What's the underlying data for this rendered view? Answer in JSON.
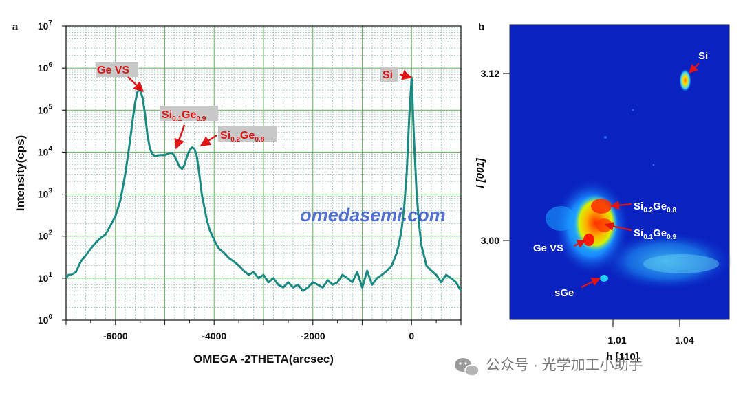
{
  "chart_data": [
    {
      "panel": "a",
      "type": "line",
      "xlabel": "OMEGA -2THETA(arcsec)",
      "ylabel": "Intensity(cps)",
      "xlim": [
        -7000,
        1000
      ],
      "ylim": [
        1,
        10000000
      ],
      "yscale": "log",
      "grid": true,
      "x_ticks": [
        -6000,
        -4000,
        -2000,
        0
      ],
      "y_tick_base": "10",
      "y_tick_exponents": [
        "0",
        "1",
        "2",
        "3",
        "4",
        "5",
        "6",
        "7"
      ],
      "line_color": "#1b8a82",
      "series": [
        {
          "x": [
            -7000,
            -6950,
            -6900,
            -6800,
            -6700,
            -6600,
            -6500,
            -6400,
            -6300,
            -6200,
            -6100,
            -6000,
            -5900,
            -5800,
            -5700,
            -5650,
            -5600,
            -5550,
            -5500,
            -5450,
            -5400,
            -5350,
            -5300,
            -5250,
            -5200,
            -5100,
            -5000,
            -4900,
            -4850,
            -4800,
            -4750,
            -4700,
            -4650,
            -4600,
            -4550,
            -4500,
            -4450,
            -4400,
            -4350,
            -4300,
            -4250,
            -4200,
            -4150,
            -4100,
            -4000,
            -3900,
            -3800,
            -3700,
            -3600,
            -3500,
            -3400,
            -3300,
            -3200,
            -3100,
            -3000,
            -2900,
            -2800,
            -2700,
            -2600,
            -2500,
            -2400,
            -2300,
            -2200,
            -2100,
            -2000,
            -1900,
            -1800,
            -1700,
            -1600,
            -1500,
            -1400,
            -1300,
            -1200,
            -1100,
            -1000,
            -900,
            -800,
            -700,
            -600,
            -500,
            -400,
            -300,
            -250,
            -200,
            -150,
            -100,
            -50,
            0,
            50,
            100,
            150,
            200,
            250,
            300,
            400,
            500,
            600,
            700,
            800,
            900,
            1000
          ],
          "y": [
            10,
            12,
            12,
            14,
            25,
            35,
            50,
            70,
            90,
            110,
            180,
            300,
            700,
            3000,
            20000,
            60000,
            150000,
            280000,
            300000,
            200000,
            80000,
            25000,
            12000,
            9000,
            8000,
            8500,
            8500,
            9500,
            9500,
            8000,
            6000,
            4500,
            4000,
            5000,
            8000,
            11000,
            13000,
            12000,
            8000,
            3000,
            1000,
            500,
            250,
            150,
            80,
            50,
            40,
            30,
            25,
            20,
            15,
            12,
            14,
            10,
            12,
            8,
            10,
            7,
            6,
            8,
            6,
            7,
            5,
            6,
            8,
            7,
            6,
            9,
            7,
            8,
            12,
            10,
            8,
            14,
            6,
            15,
            7,
            10,
            12,
            15,
            20,
            40,
            70,
            150,
            500,
            3000,
            60000,
            600000,
            20000,
            1200,
            200,
            60,
            35,
            20,
            15,
            12,
            8,
            12,
            10,
            8,
            5
          ]
        }
      ],
      "annotations": [
        {
          "text": "Ge VS",
          "x": -5500,
          "y": 300000
        },
        {
          "base": "Si",
          "sub1": "0.1",
          "mid": "Ge",
          "sub2": "0.9",
          "x": -4870,
          "y": 9500
        },
        {
          "base": "Si",
          "sub1": "0.2",
          "mid": "Ge",
          "sub2": "0.8",
          "x": -4400,
          "y": 13000
        },
        {
          "text": "Si",
          "x": 0,
          "y": 600000
        }
      ]
    },
    {
      "panel": "b",
      "type": "heatmap",
      "xlabel": "h [110]",
      "ylabel": "l [001]",
      "x_ticks": [
        "1.01",
        "1.04"
      ],
      "y_ticks": [
        "3.12",
        "3.00"
      ],
      "annotations": [
        {
          "text": "Si"
        },
        {
          "base": "Si",
          "sub1": "0.2",
          "mid": "Ge",
          "sub2": "0.8"
        },
        {
          "base": "Si",
          "sub1": "0.1",
          "mid": "Ge",
          "sub2": "0.9"
        },
        {
          "text": "Ge VS"
        },
        {
          "text": "sGe"
        }
      ]
    }
  ],
  "watermark": "omedasemi.com",
  "footer": {
    "text": "公众号 · 光学加工小助手"
  }
}
